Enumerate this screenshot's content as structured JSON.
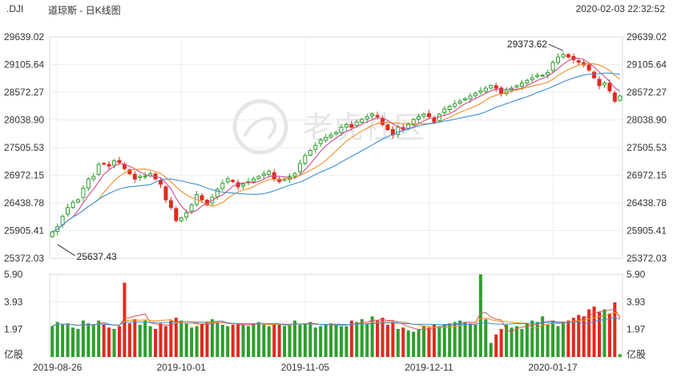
{
  "header": {
    "symbol": ".DJI",
    "title": "道琼斯 - 日K线图",
    "timestamp": "2020-02-03 22:32:52"
  },
  "watermark": "老虎社区",
  "chart_data": {
    "type": "candlestick",
    "y_ticks": [
      "29639.02",
      "29105.64",
      "28572.27",
      "28038.90",
      "27505.53",
      "26972.15",
      "26438.78",
      "25905.41",
      "25372.03"
    ],
    "ylim": [
      25372.03,
      29639.02
    ],
    "volume_ticks": [
      "5.90",
      "3.93",
      "1.97",
      "亿股"
    ],
    "volume_ylim": [
      0,
      5.9
    ],
    "x_ticks": [
      "2019-08-26",
      "2019-10-01",
      "2019-11-05",
      "2019-12-11",
      "2020-01-17"
    ],
    "x_tick_index": [
      1,
      25,
      49,
      73,
      97
    ],
    "annotations": [
      {
        "label": "29373.62",
        "index": 99,
        "value": 29373.62
      },
      {
        "label": "25637.43",
        "index": 1,
        "value": 25637.43
      }
    ],
    "up_color": "#2e9e2e",
    "down_color": "#e02a1f",
    "ma_colors": [
      "#d04a8a",
      "#f28c28",
      "#3a8fd6"
    ],
    "vol_ma_colors": [
      "#e05050",
      "#f28c28",
      "#3a8fd6"
    ],
    "closes": [
      25880,
      25980,
      26180,
      26350,
      26450,
      26500,
      26720,
      26900,
      26950,
      27180,
      27200,
      27150,
      27250,
      27220,
      27100,
      27000,
      26900,
      26950,
      26960,
      27000,
      26900,
      26800,
      26500,
      26350,
      26100,
      26150,
      26250,
      26400,
      26600,
      26500,
      26400,
      26550,
      26700,
      26820,
      26900,
      26850,
      26750,
      26800,
      26850,
      26900,
      26950,
      27000,
      27050,
      26900,
      26850,
      26900,
      26950,
      27000,
      27200,
      27350,
      27450,
      27550,
      27650,
      27700,
      27750,
      27800,
      27900,
      27950,
      27900,
      28000,
      28050,
      28100,
      28150,
      28100,
      27950,
      27850,
      27750,
      27900,
      27850,
      27950,
      28050,
      28100,
      28150,
      28100,
      28000,
      28150,
      28250,
      28300,
      28350,
      28400,
      28450,
      28500,
      28550,
      28600,
      28650,
      28700,
      28650,
      28550,
      28600,
      28650,
      28700,
      28750,
      28800,
      28850,
      28900,
      28900,
      28950,
      29150,
      29250,
      29300,
      29250,
      29200,
      29150,
      29100,
      29000,
      28850,
      28700,
      28750,
      28600,
      28400,
      28500
    ],
    "volumes": [
      2.2,
      2.5,
      2.3,
      2.4,
      2.1,
      2.0,
      2.6,
      2.4,
      2.3,
      2.6,
      2.3,
      2.1,
      2.0,
      2.2,
      5.3,
      2.4,
      2.7,
      2.3,
      2.6,
      2.2,
      2.0,
      2.4,
      2.2,
      2.6,
      2.8,
      2.6,
      2.4,
      2.1,
      2.2,
      2.4,
      2.5,
      2.7,
      2.5,
      2.3,
      2.2,
      2.3,
      2.4,
      2.3,
      2.2,
      2.4,
      2.5,
      2.3,
      2.2,
      2.4,
      2.3,
      2.2,
      2.3,
      2.6,
      2.3,
      2.4,
      2.5,
      2.1,
      2.2,
      2.3,
      2.4,
      2.3,
      2.2,
      2.2,
      2.6,
      2.5,
      2.7,
      2.4,
      2.9,
      2.6,
      2.8,
      2.3,
      2.5,
      2.0,
      2.1,
      1.9,
      1.8,
      2.0,
      2.2,
      2.1,
      2.3,
      2.2,
      2.3,
      2.4,
      2.5,
      2.6,
      2.5,
      2.4,
      2.3,
      5.9,
      2.7,
      1.0,
      1.6,
      2.0,
      2.3,
      2.1,
      2.2,
      2.0,
      2.4,
      2.6,
      2.5,
      2.9,
      2.3,
      2.6,
      2.2,
      2.5,
      2.6,
      2.8,
      3.0,
      2.9,
      3.4,
      3.6,
      3.2,
      3.4,
      3.1,
      3.9,
      0.2
    ]
  }
}
